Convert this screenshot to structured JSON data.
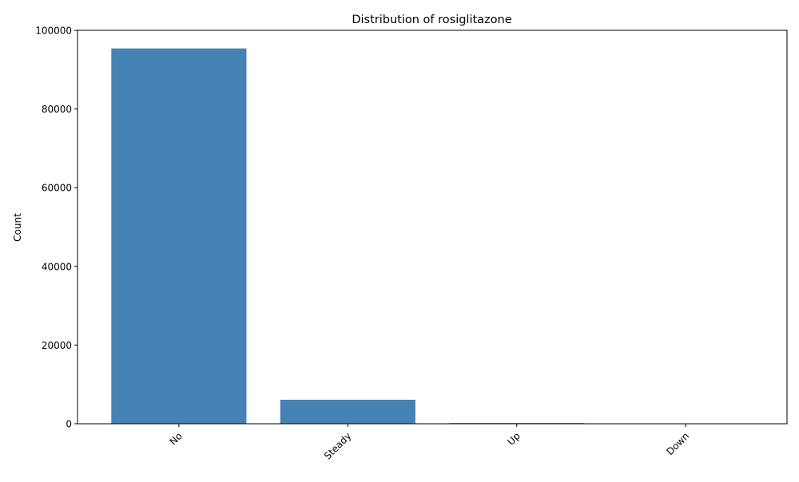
{
  "chart_data": {
    "type": "bar",
    "title": "Distribution of rosiglitazone",
    "xlabel": "",
    "ylabel": "Count",
    "categories": [
      "No",
      "Steady",
      "Up",
      "Down"
    ],
    "values": [
      95401,
      6100,
      178,
      13
    ],
    "ylim": [
      0,
      100000
    ],
    "yticks": [
      0,
      20000,
      40000,
      60000,
      80000,
      100000
    ],
    "ytick_labels": [
      "0",
      "20000",
      "40000",
      "60000",
      "80000",
      "100000"
    ],
    "bar_color": "#4682b4",
    "grid": false,
    "legend": "none"
  }
}
